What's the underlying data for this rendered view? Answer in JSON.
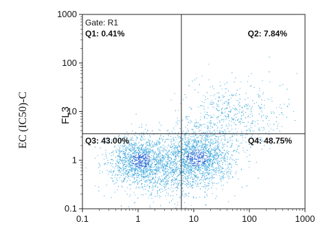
{
  "figure": {
    "side_label": "EC (IC50)-C"
  },
  "chart_data": {
    "type": "scatter",
    "gate_label": "Gate: R1",
    "ylabel": "FL3",
    "xlabel": "",
    "xscale": "log",
    "yscale": "log",
    "xlim": [
      0.1,
      1000
    ],
    "ylim": [
      0.1,
      1000
    ],
    "x_tick_labels": [
      "0.1",
      "1",
      "10",
      "100",
      "1000"
    ],
    "y_tick_labels": [
      "0.1",
      "1",
      "10",
      "100",
      "1000"
    ],
    "x_ticks": [
      0.1,
      1,
      10,
      100,
      1000
    ],
    "y_ticks": [
      0.1,
      1,
      10,
      100,
      1000
    ],
    "quadrant_divider": {
      "x": 6,
      "y": 3.5
    },
    "quadrants": [
      {
        "label": "Q1: 0.41%",
        "value": 0.41
      },
      {
        "label": "Q2: 7.84%",
        "value": 7.84
      },
      {
        "label": "Q3: 43.00%",
        "value": 43.0
      },
      {
        "label": "Q4: 48.75%",
        "value": 48.75
      }
    ],
    "point_color": "#2a9fd8",
    "dense_color": "#1f5fd0",
    "line_color": "#222222",
    "grid": false
  }
}
